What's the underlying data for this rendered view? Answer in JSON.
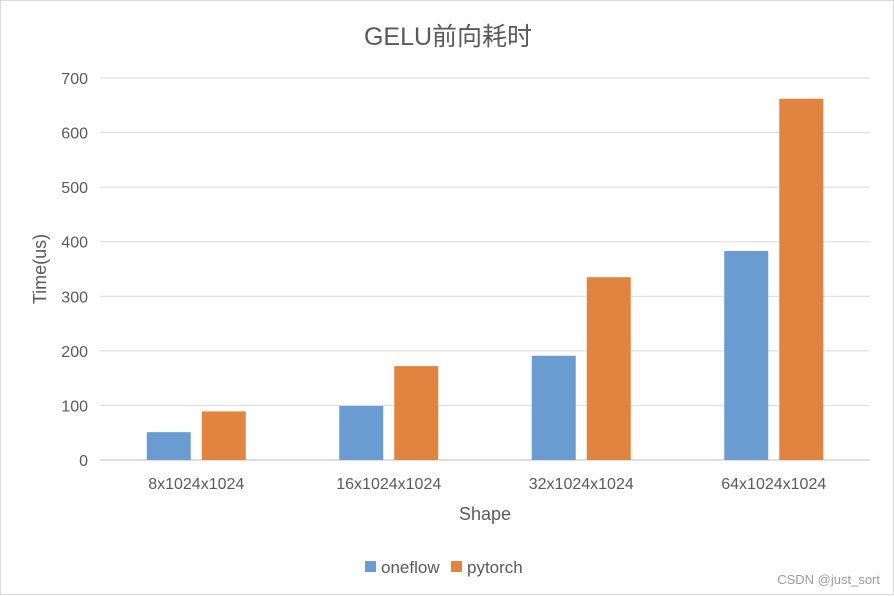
{
  "chart_data": {
    "type": "bar",
    "title": "GELU前向耗时",
    "xlabel": "Shape",
    "ylabel": "Time(us)",
    "categories": [
      "8x1024x1024",
      "16x1024x1024",
      "32x1024x1024",
      "64x1024x1024"
    ],
    "series": [
      {
        "name": "oneflow",
        "color": "#6a9bd1",
        "values": [
          51,
          99,
          191,
          383
        ]
      },
      {
        "name": "pytorch",
        "color": "#e0843f",
        "values": [
          89,
          172,
          335,
          662
        ]
      }
    ],
    "ylim": [
      0,
      700
    ],
    "yticks": [
      0,
      100,
      200,
      300,
      400,
      500,
      600,
      700
    ],
    "grid": true,
    "legend_position": "bottom"
  },
  "watermark": "CSDN @just_sort"
}
